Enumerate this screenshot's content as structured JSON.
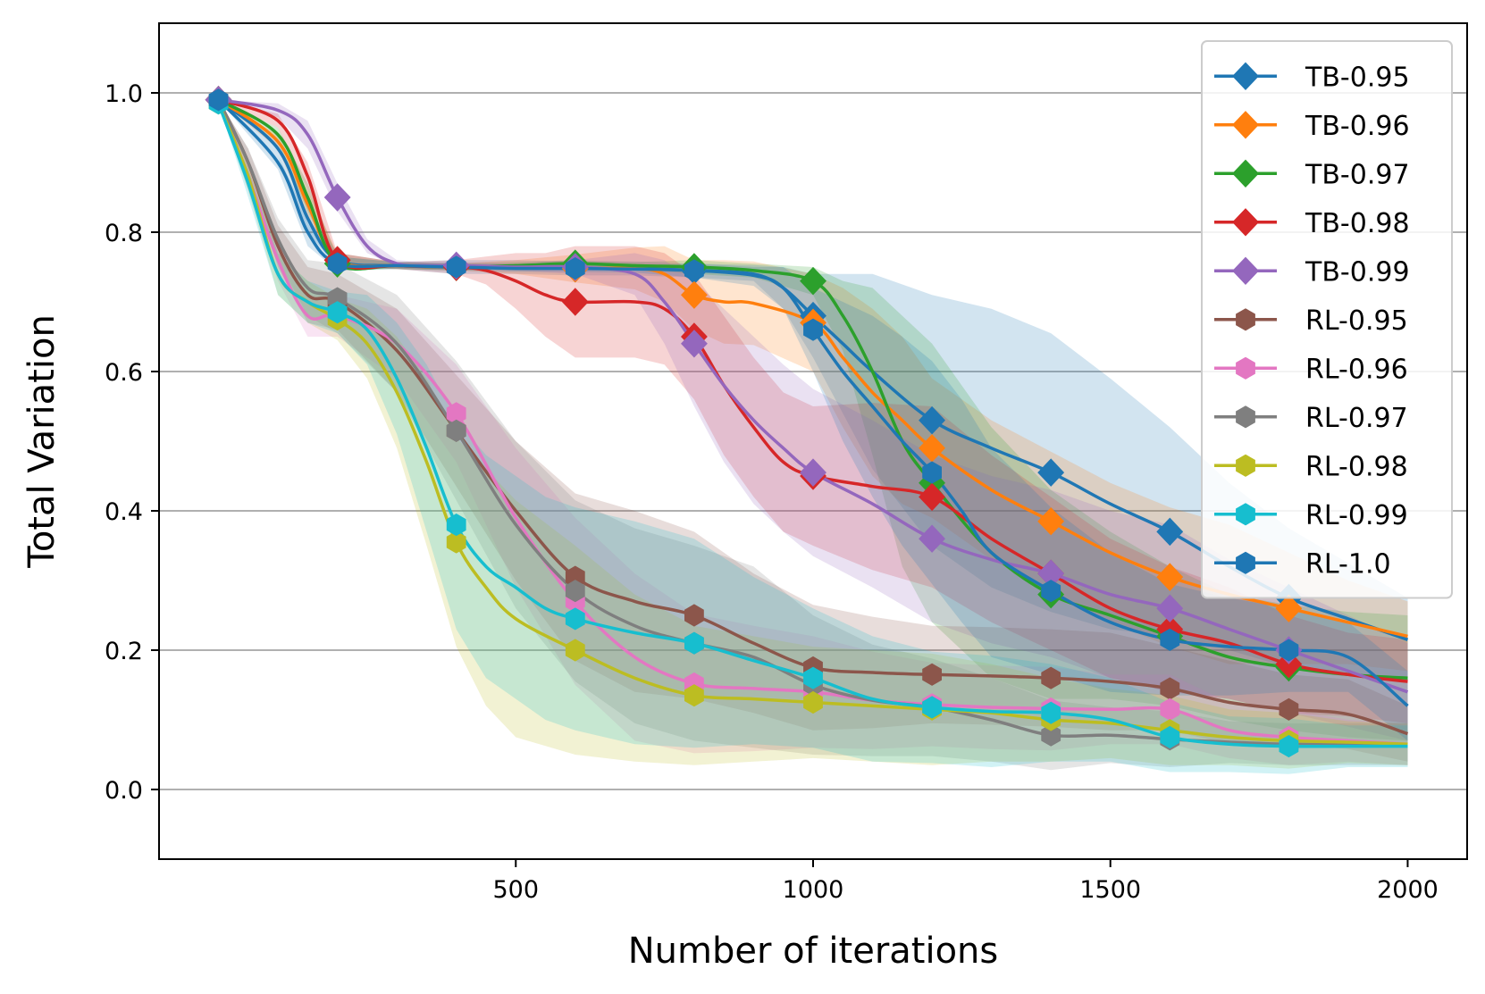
{
  "chart_data": {
    "type": "line",
    "title": "",
    "xlabel": "Number of iterations",
    "ylabel": "Total Variation",
    "xlim": [
      -100,
      2100
    ],
    "ylim": [
      -0.1,
      1.1
    ],
    "xticks": [
      500,
      1000,
      1500,
      2000
    ],
    "yticks": [
      0.0,
      0.2,
      0.4,
      0.6,
      0.8,
      1.0
    ],
    "xtick_labels": [
      "500",
      "1000",
      "1500",
      "2000"
    ],
    "ytick_labels": [
      "0.0",
      "0.2",
      "0.4",
      "0.6",
      "0.8",
      "1.0"
    ],
    "grid": "horizontal",
    "legend_position": "top-right",
    "marker_x": [
      0,
      200,
      400,
      600,
      800,
      1000,
      1200,
      1400,
      1600,
      1800
    ],
    "series": [
      {
        "name": "TB-0.95",
        "color": "#1f77b4",
        "marker": "diamond",
        "x": [
          0,
          100,
          150,
          200,
          300,
          400,
          500,
          600,
          700,
          800,
          900,
          950,
          1000,
          1050,
          1100,
          1200,
          1300,
          1400,
          1500,
          1600,
          1700,
          1800,
          1900,
          2000
        ],
        "y": [
          0.99,
          0.92,
          0.82,
          0.76,
          0.752,
          0.75,
          0.75,
          0.748,
          0.748,
          0.745,
          0.74,
          0.72,
          0.68,
          0.64,
          0.6,
          0.53,
          0.49,
          0.455,
          0.41,
          0.37,
          0.32,
          0.275,
          0.245,
          0.215
        ],
        "band": [
          0.0,
          0.01,
          0.02,
          0.01,
          0.005,
          0.01,
          0.01,
          0.01,
          0.01,
          0.01,
          0.01,
          0.03,
          0.06,
          0.1,
          0.14,
          0.18,
          0.2,
          0.2,
          0.18,
          0.15,
          0.12,
          0.1,
          0.08,
          0.06
        ]
      },
      {
        "name": "TB-0.96",
        "color": "#ff7f0e",
        "marker": "diamond",
        "x": [
          0,
          100,
          150,
          200,
          300,
          400,
          500,
          600,
          700,
          750,
          800,
          850,
          900,
          1000,
          1050,
          1100,
          1150,
          1200,
          1300,
          1400,
          1500,
          1600,
          1700,
          1800,
          1900,
          2000
        ],
        "y": [
          0.99,
          0.93,
          0.84,
          0.76,
          0.752,
          0.75,
          0.75,
          0.748,
          0.748,
          0.74,
          0.71,
          0.7,
          0.698,
          0.67,
          0.62,
          0.57,
          0.53,
          0.49,
          0.43,
          0.385,
          0.34,
          0.305,
          0.28,
          0.26,
          0.24,
          0.22
        ],
        "band": [
          0.0,
          0.01,
          0.02,
          0.01,
          0.005,
          0.005,
          0.01,
          0.02,
          0.03,
          0.04,
          0.05,
          0.06,
          0.06,
          0.07,
          0.1,
          0.12,
          0.12,
          0.1,
          0.1,
          0.1,
          0.1,
          0.1,
          0.1,
          0.08,
          0.06,
          0.05
        ]
      },
      {
        "name": "TB-0.97",
        "color": "#2ca02c",
        "marker": "diamond",
        "x": [
          0,
          100,
          150,
          200,
          300,
          400,
          500,
          600,
          700,
          800,
          900,
          1000,
          1050,
          1100,
          1150,
          1200,
          1300,
          1400,
          1500,
          1600,
          1700,
          1800,
          1900,
          2000
        ],
        "y": [
          0.99,
          0.94,
          0.85,
          0.755,
          0.752,
          0.75,
          0.752,
          0.755,
          0.752,
          0.75,
          0.745,
          0.73,
          0.68,
          0.6,
          0.5,
          0.44,
          0.34,
          0.28,
          0.25,
          0.22,
          0.19,
          0.175,
          0.165,
          0.16
        ],
        "band": [
          0.0,
          0.01,
          0.02,
          0.01,
          0.005,
          0.005,
          0.005,
          0.005,
          0.005,
          0.01,
          0.01,
          0.02,
          0.05,
          0.12,
          0.18,
          0.2,
          0.18,
          0.15,
          0.12,
          0.1,
          0.09,
          0.09,
          0.09,
          0.09
        ]
      },
      {
        "name": "TB-0.98",
        "color": "#d62728",
        "marker": "diamond",
        "x": [
          0,
          100,
          150,
          200,
          300,
          400,
          450,
          500,
          550,
          600,
          700,
          750,
          800,
          850,
          900,
          950,
          1000,
          1100,
          1200,
          1300,
          1400,
          1500,
          1600,
          1700,
          1800,
          1900,
          2000
        ],
        "y": [
          0.99,
          0.96,
          0.88,
          0.76,
          0.752,
          0.75,
          0.745,
          0.73,
          0.71,
          0.7,
          0.7,
          0.69,
          0.65,
          0.58,
          0.52,
          0.47,
          0.45,
          0.435,
          0.42,
          0.36,
          0.31,
          0.26,
          0.23,
          0.21,
          0.18,
          0.165,
          0.155
        ],
        "band": [
          0.0,
          0.01,
          0.02,
          0.01,
          0.005,
          0.01,
          0.02,
          0.04,
          0.06,
          0.08,
          0.08,
          0.08,
          0.09,
          0.1,
          0.1,
          0.1,
          0.1,
          0.12,
          0.13,
          0.12,
          0.11,
          0.1,
          0.09,
          0.08,
          0.07,
          0.06,
          0.06
        ]
      },
      {
        "name": "TB-0.99",
        "color": "#9467bd",
        "marker": "diamond",
        "x": [
          0,
          100,
          150,
          200,
          250,
          300,
          350,
          400,
          500,
          600,
          700,
          750,
          800,
          850,
          900,
          950,
          1000,
          1100,
          1200,
          1300,
          1400,
          1500,
          1600,
          1700,
          1800,
          1900,
          2000
        ],
        "y": [
          0.99,
          0.975,
          0.94,
          0.85,
          0.78,
          0.755,
          0.752,
          0.752,
          0.75,
          0.75,
          0.74,
          0.7,
          0.64,
          0.58,
          0.53,
          0.49,
          0.455,
          0.41,
          0.36,
          0.33,
          0.31,
          0.28,
          0.26,
          0.23,
          0.2,
          0.17,
          0.14
        ],
        "band": [
          0.0,
          0.01,
          0.02,
          0.02,
          0.01,
          0.005,
          0.005,
          0.005,
          0.005,
          0.01,
          0.03,
          0.06,
          0.09,
          0.11,
          0.12,
          0.12,
          0.12,
          0.12,
          0.12,
          0.12,
          0.12,
          0.12,
          0.12,
          0.1,
          0.09,
          0.08,
          0.07
        ]
      },
      {
        "name": "RL-0.95",
        "color": "#8c564b",
        "marker": "hexagon",
        "x": [
          0,
          50,
          100,
          150,
          200,
          300,
          400,
          500,
          600,
          700,
          800,
          900,
          1000,
          1100,
          1200,
          1300,
          1400,
          1500,
          1600,
          1700,
          1800,
          1900,
          2000
        ],
        "y": [
          0.99,
          0.9,
          0.78,
          0.71,
          0.7,
          0.63,
          0.515,
          0.4,
          0.305,
          0.27,
          0.25,
          0.21,
          0.175,
          0.168,
          0.165,
          0.163,
          0.16,
          0.155,
          0.145,
          0.125,
          0.115,
          0.108,
          0.08
        ],
        "band": [
          0.0,
          0.02,
          0.03,
          0.04,
          0.04,
          0.06,
          0.08,
          0.1,
          0.12,
          0.13,
          0.12,
          0.1,
          0.09,
          0.08,
          0.07,
          0.07,
          0.07,
          0.07,
          0.06,
          0.06,
          0.05,
          0.05,
          0.04
        ]
      },
      {
        "name": "RL-0.96",
        "color": "#e377c2",
        "marker": "hexagon",
        "x": [
          0,
          50,
          100,
          150,
          200,
          300,
          400,
          500,
          600,
          700,
          800,
          900,
          1000,
          1100,
          1200,
          1300,
          1400,
          1500,
          1600,
          1700,
          1800,
          1900,
          2000
        ],
        "y": [
          0.99,
          0.88,
          0.76,
          0.68,
          0.68,
          0.64,
          0.54,
          0.39,
          0.27,
          0.19,
          0.152,
          0.145,
          0.14,
          0.128,
          0.122,
          0.118,
          0.116,
          0.115,
          0.115,
          0.085,
          0.075,
          0.07,
          0.065
        ],
        "band": [
          0.0,
          0.02,
          0.03,
          0.03,
          0.03,
          0.05,
          0.07,
          0.1,
          0.12,
          0.12,
          0.1,
          0.09,
          0.08,
          0.07,
          0.06,
          0.06,
          0.06,
          0.05,
          0.05,
          0.04,
          0.04,
          0.03,
          0.03
        ]
      },
      {
        "name": "RL-0.97",
        "color": "#7f7f7f",
        "marker": "hexagon",
        "x": [
          0,
          50,
          100,
          150,
          200,
          300,
          400,
          500,
          600,
          700,
          800,
          900,
          1000,
          1100,
          1200,
          1300,
          1400,
          1500,
          1600,
          1700,
          1800,
          1900,
          2000
        ],
        "y": [
          0.99,
          0.9,
          0.79,
          0.72,
          0.705,
          0.64,
          0.515,
          0.38,
          0.285,
          0.235,
          0.21,
          0.19,
          0.15,
          0.128,
          0.118,
          0.1,
          0.078,
          0.078,
          0.072,
          0.068,
          0.065,
          0.065,
          0.065
        ],
        "band": [
          0.0,
          0.02,
          0.03,
          0.04,
          0.05,
          0.07,
          0.1,
          0.12,
          0.13,
          0.14,
          0.14,
          0.13,
          0.1,
          0.08,
          0.07,
          0.06,
          0.05,
          0.04,
          0.04,
          0.03,
          0.03,
          0.03,
          0.03
        ]
      },
      {
        "name": "RL-0.98",
        "color": "#bcbd22",
        "marker": "hexagon",
        "x": [
          0,
          50,
          100,
          150,
          200,
          250,
          300,
          350,
          400,
          450,
          500,
          600,
          700,
          800,
          900,
          1000,
          1100,
          1200,
          1300,
          1400,
          1500,
          1600,
          1700,
          1800,
          1900,
          2000
        ],
        "y": [
          0.985,
          0.88,
          0.74,
          0.7,
          0.675,
          0.64,
          0.57,
          0.47,
          0.355,
          0.29,
          0.245,
          0.2,
          0.16,
          0.135,
          0.13,
          0.125,
          0.12,
          0.115,
          0.11,
          0.1,
          0.095,
          0.085,
          0.075,
          0.07,
          0.068,
          0.065
        ],
        "band": [
          0.0,
          0.02,
          0.03,
          0.03,
          0.03,
          0.05,
          0.08,
          0.12,
          0.15,
          0.17,
          0.17,
          0.15,
          0.12,
          0.1,
          0.09,
          0.08,
          0.08,
          0.08,
          0.07,
          0.06,
          0.05,
          0.05,
          0.04,
          0.04,
          0.03,
          0.03
        ]
      },
      {
        "name": "RL-0.99",
        "color": "#17becf",
        "marker": "hexagon",
        "x": [
          0,
          50,
          100,
          150,
          200,
          250,
          300,
          350,
          400,
          450,
          500,
          550,
          600,
          700,
          800,
          900,
          1000,
          1100,
          1200,
          1300,
          1400,
          1500,
          1600,
          1700,
          1800,
          1900,
          2000
        ],
        "y": [
          0.985,
          0.87,
          0.74,
          0.7,
          0.685,
          0.66,
          0.59,
          0.49,
          0.38,
          0.32,
          0.29,
          0.26,
          0.245,
          0.225,
          0.21,
          0.185,
          0.16,
          0.13,
          0.118,
          0.112,
          0.11,
          0.1,
          0.075,
          0.065,
          0.062,
          0.062,
          0.062
        ],
        "band": [
          0.0,
          0.02,
          0.03,
          0.03,
          0.03,
          0.05,
          0.08,
          0.12,
          0.15,
          0.16,
          0.16,
          0.16,
          0.16,
          0.16,
          0.15,
          0.12,
          0.1,
          0.09,
          0.08,
          0.08,
          0.07,
          0.06,
          0.05,
          0.04,
          0.04,
          0.03,
          0.03
        ]
      },
      {
        "name": "RL-1.0",
        "color": "#1f77b4",
        "marker": "hexagon",
        "x": [
          0,
          100,
          150,
          200,
          300,
          400,
          500,
          600,
          700,
          800,
          900,
          950,
          1000,
          1050,
          1100,
          1150,
          1200,
          1250,
          1300,
          1400,
          1500,
          1600,
          1700,
          1800,
          1900,
          2000
        ],
        "y": [
          0.99,
          0.9,
          0.8,
          0.755,
          0.752,
          0.75,
          0.748,
          0.748,
          0.747,
          0.745,
          0.738,
          0.72,
          0.66,
          0.6,
          0.55,
          0.5,
          0.455,
          0.4,
          0.34,
          0.285,
          0.24,
          0.215,
          0.205,
          0.2,
          0.19,
          0.12
        ],
        "band": [
          0.0,
          0.01,
          0.02,
          0.01,
          0.005,
          0.005,
          0.005,
          0.005,
          0.005,
          0.01,
          0.015,
          0.03,
          0.06,
          0.1,
          0.13,
          0.15,
          0.16,
          0.16,
          0.15,
          0.12,
          0.1,
          0.08,
          0.07,
          0.06,
          0.05,
          0.05
        ]
      }
    ]
  }
}
